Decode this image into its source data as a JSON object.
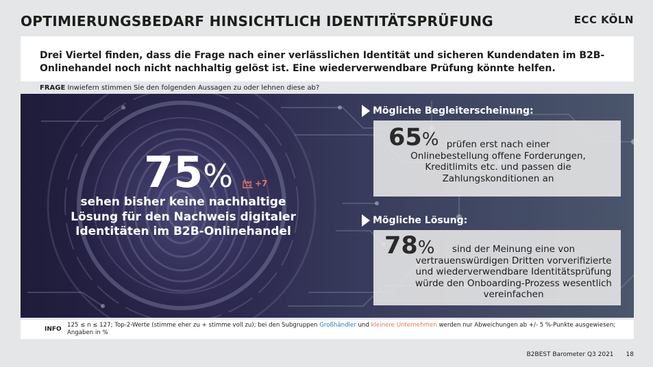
{
  "header": {
    "title": "OPTIMIERUNGSBEDARF HINSICHTLICH IDENTITÄTSPRÜFUNG",
    "logo": "ECC KÖLN"
  },
  "summary": "Drei Viertel finden, dass die Frage nach einer verlässlichen Identität und sicheren Kundendaten im B2B-Onlinehandel noch nicht nachhaltig gelöst ist. Eine wiederverwendbare Prüfung könnte helfen.",
  "question": {
    "label": "FRAGE",
    "text": "Inwiefern stimmen Sie den folgenden Aussagen zu oder lehnen diese ab?"
  },
  "main_stat": {
    "value": "75",
    "unit": "%",
    "delta": "+7",
    "delta_icon": "factory-icon",
    "description": "sehen bisher keine nachhaltige Lösung für den Nachweis digitaler Identitäten im B2B-Onlinehandel"
  },
  "side_stats": [
    {
      "heading": "Mögliche Begleiterscheinung:",
      "value": "65",
      "unit": "%",
      "text": "prüfen erst nach einer Onlinebestellung offene Forderungen, Kreditlimits etc. und passen die Zahlungskonditionen an"
    },
    {
      "heading": "Mögliche Lösung:",
      "value": "78",
      "unit": "%",
      "text": "sind der Meinung eine von vertrauenswürdigen Dritten vorverifizierte und wiederverwendbare Identitätsprüfung würde den Onboarding-Prozess wesentlich vereinfachen"
    }
  ],
  "info": {
    "label": "INFO",
    "text_1": "125 ≤ n ≤ 127; Top-2-Werte (stimme eher zu + stimme voll zu); bei den Subgruppen",
    "group_1": "Großhändler",
    "text_2": "und",
    "group_2": "kleinere Unternehmen",
    "text_3": "werden nur Abweichungen ab +/- 5 %-Punkte ausgewiesen; Angaben in %"
  },
  "footer": {
    "source": "B2BEST Barometer Q3 2021",
    "page": "18"
  },
  "colors": {
    "accent_orange": "#e07a5f",
    "accent_blue": "#2b7bb9",
    "hero_dark": "#1f1b3a"
  }
}
